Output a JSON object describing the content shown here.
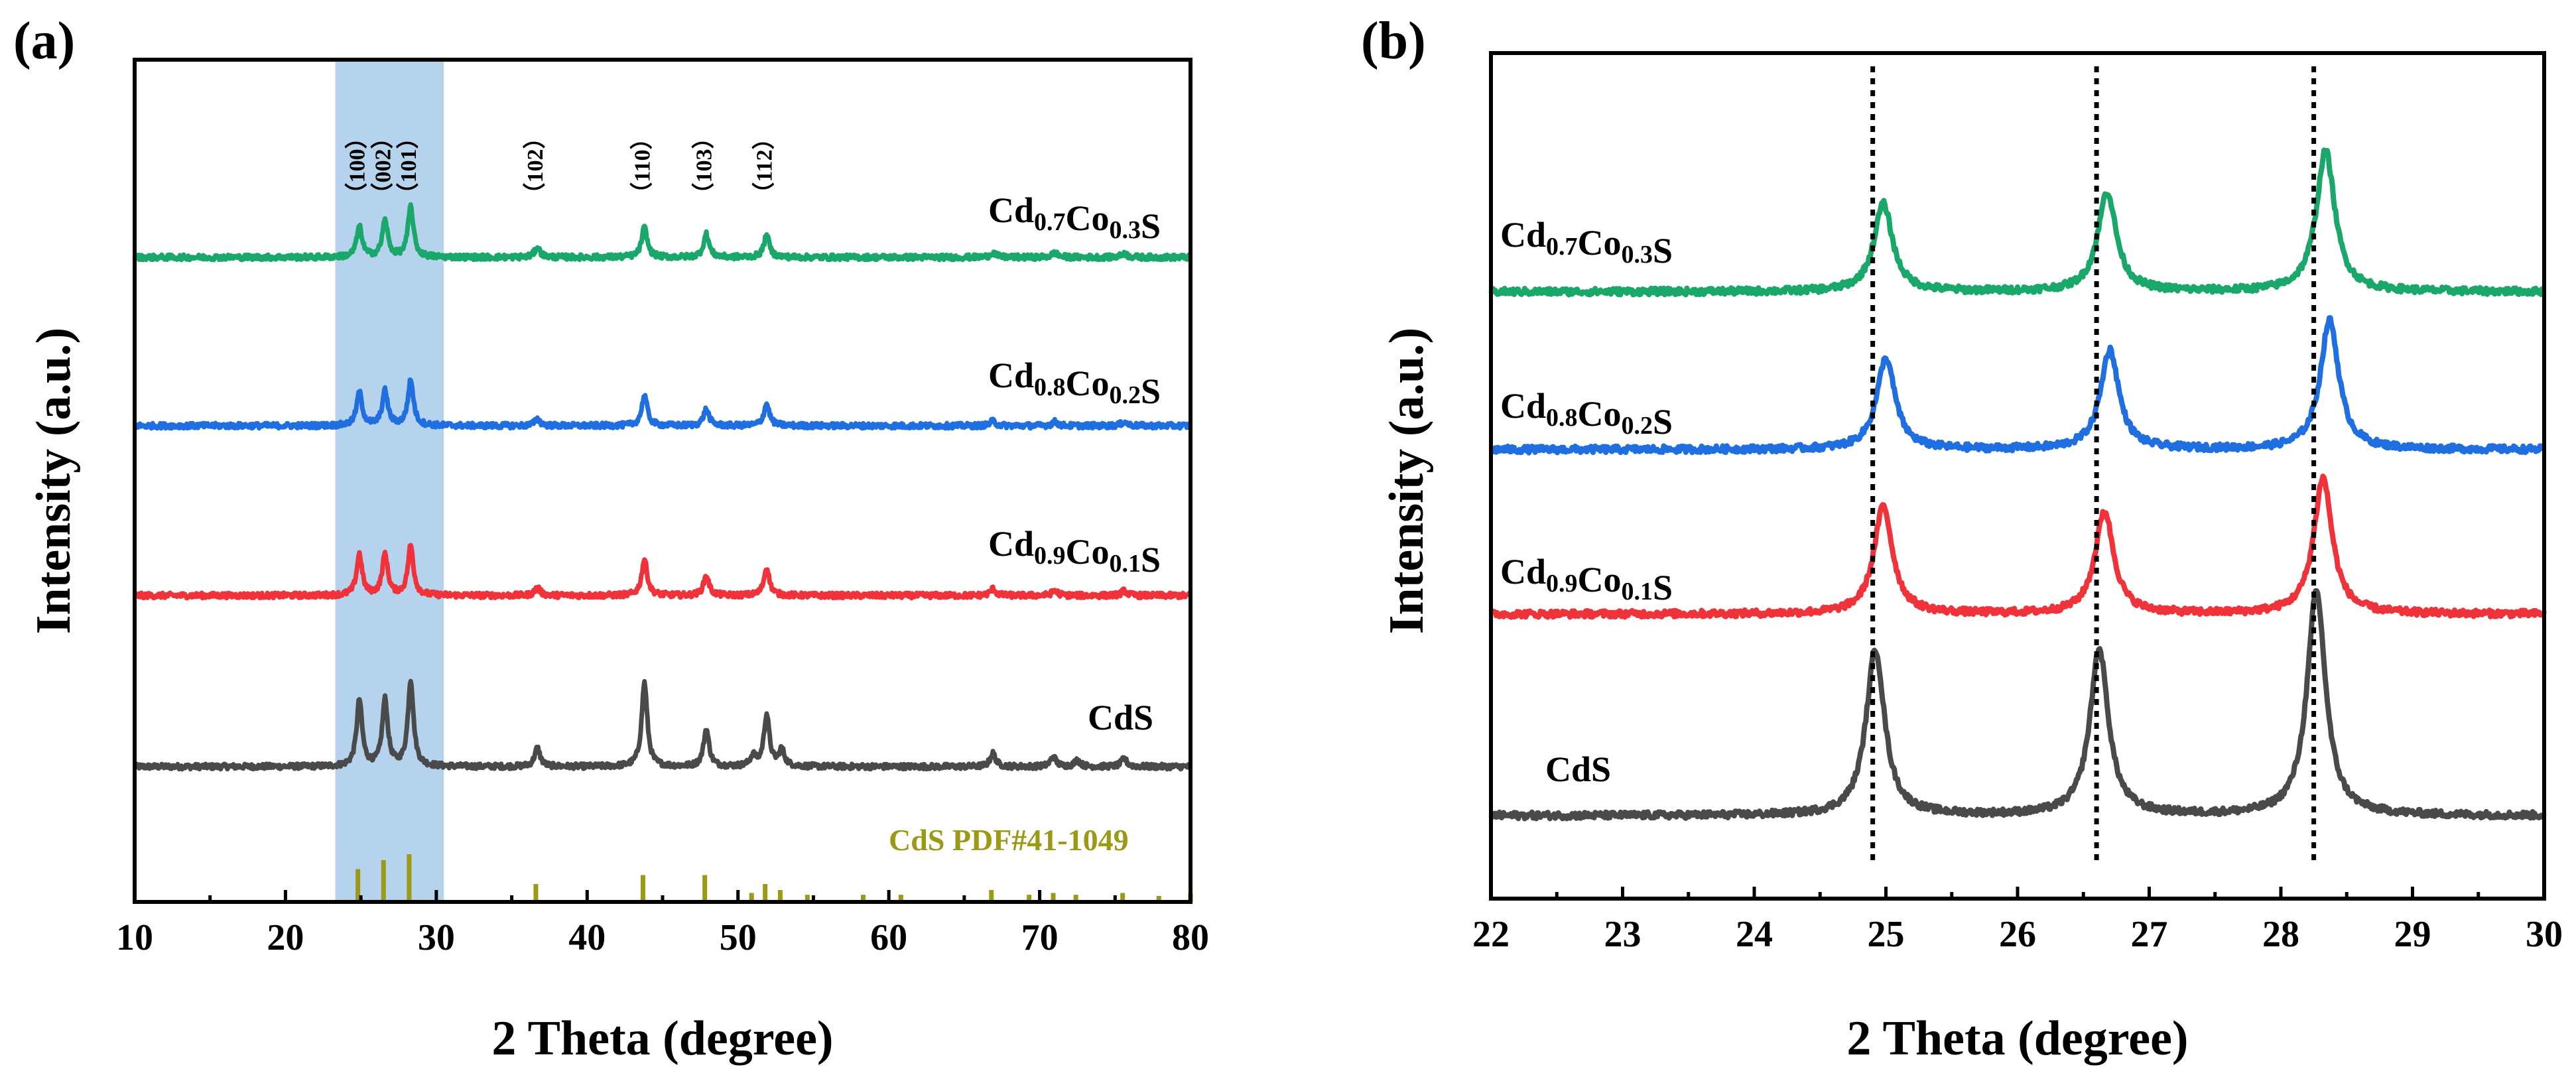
{
  "chart_data": [
    {
      "panel": "(a)",
      "type": "line",
      "xlabel": "2 Theta (degree)",
      "ylabel": "Intensity (a.u.)",
      "xlim": [
        10,
        80
      ],
      "xticks": [
        "10",
        "20",
        "30",
        "40",
        "50",
        "60",
        "70",
        "80"
      ],
      "highlight_range": [
        23.3,
        30.5
      ],
      "hkl_labels": [
        {
          "text": "（100）",
          "x": 24.8
        },
        {
          "text": "（002）",
          "x": 26.5
        },
        {
          "text": "（101）",
          "x": 28.2
        },
        {
          "text": "（102）",
          "x": 36.6
        },
        {
          "text": "（110）",
          "x": 43.7
        },
        {
          "text": "（103）",
          "x": 47.8
        },
        {
          "text": "（112）",
          "x": 51.8
        }
      ],
      "reference": {
        "label": "CdS PDF#41-1049",
        "color": "#9a9a14",
        "peaks": [
          {
            "x": 24.8,
            "h": 0.55
          },
          {
            "x": 26.5,
            "h": 0.7
          },
          {
            "x": 28.2,
            "h": 0.8
          },
          {
            "x": 36.6,
            "h": 0.3
          },
          {
            "x": 43.7,
            "h": 0.45
          },
          {
            "x": 47.8,
            "h": 0.45
          },
          {
            "x": 50.9,
            "h": 0.15
          },
          {
            "x": 51.8,
            "h": 0.3
          },
          {
            "x": 52.8,
            "h": 0.2
          },
          {
            "x": 54.6,
            "h": 0.12
          },
          {
            "x": 58.3,
            "h": 0.12
          },
          {
            "x": 60.8,
            "h": 0.12
          },
          {
            "x": 66.8,
            "h": 0.2
          },
          {
            "x": 69.3,
            "h": 0.12
          },
          {
            "x": 70.9,
            "h": 0.15
          },
          {
            "x": 72.4,
            "h": 0.12
          },
          {
            "x": 75.5,
            "h": 0.15
          },
          {
            "x": 77.9,
            "h": 0.1
          },
          {
            "x": 80.0,
            "h": 0.15
          }
        ]
      },
      "series": [
        {
          "name": "CdS",
          "label_main": "CdS",
          "color": "#4a4a4a",
          "offset": 0,
          "peaks": [
            {
              "x": 24.9,
              "h": 1.0
            },
            {
              "x": 26.6,
              "h": 1.0
            },
            {
              "x": 28.3,
              "h": 1.3
            },
            {
              "x": 36.7,
              "h": 0.28
            },
            {
              "x": 43.8,
              "h": 1.27
            },
            {
              "x": 47.9,
              "h": 0.56
            },
            {
              "x": 51.0,
              "h": 0.15
            },
            {
              "x": 51.9,
              "h": 0.78
            },
            {
              "x": 52.9,
              "h": 0.25
            },
            {
              "x": 66.9,
              "h": 0.2
            },
            {
              "x": 70.9,
              "h": 0.15
            },
            {
              "x": 72.5,
              "h": 0.1
            },
            {
              "x": 75.6,
              "h": 0.12
            }
          ]
        },
        {
          "name": "Cd0.9Co0.1S",
          "label_parts": [
            "Cd",
            "0.9",
            "Co",
            "0.1",
            "S"
          ],
          "color": "#f0333a",
          "offset": 1,
          "peaks": [
            {
              "x": 24.9,
              "h": 0.62
            },
            {
              "x": 26.6,
              "h": 0.62
            },
            {
              "x": 28.3,
              "h": 0.75
            },
            {
              "x": 36.7,
              "h": 0.12
            },
            {
              "x": 43.8,
              "h": 0.55
            },
            {
              "x": 47.9,
              "h": 0.3
            },
            {
              "x": 51.9,
              "h": 0.42
            },
            {
              "x": 66.9,
              "h": 0.1
            },
            {
              "x": 71.0,
              "h": 0.08
            },
            {
              "x": 75.6,
              "h": 0.07
            }
          ]
        },
        {
          "name": "Cd0.8Co0.2S",
          "label_parts": [
            "Cd",
            "0.8",
            "Co",
            "0.2",
            "S"
          ],
          "color": "#1f6fe0",
          "offset": 2,
          "peaks": [
            {
              "x": 24.9,
              "h": 0.5
            },
            {
              "x": 26.6,
              "h": 0.52
            },
            {
              "x": 28.3,
              "h": 0.68
            },
            {
              "x": 36.7,
              "h": 0.1
            },
            {
              "x": 43.8,
              "h": 0.46
            },
            {
              "x": 47.9,
              "h": 0.25
            },
            {
              "x": 51.9,
              "h": 0.33
            },
            {
              "x": 66.9,
              "h": 0.07
            },
            {
              "x": 71.0,
              "h": 0.06
            },
            {
              "x": 75.6,
              "h": 0.06
            }
          ]
        },
        {
          "name": "Cd0.7Co0.3S",
          "label_parts": [
            "Cd",
            "0.7",
            "Co",
            "0.3",
            "S"
          ],
          "color": "#1aa86a",
          "offset": 3,
          "peaks": [
            {
              "x": 24.9,
              "h": 0.46
            },
            {
              "x": 26.6,
              "h": 0.55
            },
            {
              "x": 28.3,
              "h": 0.76
            },
            {
              "x": 36.7,
              "h": 0.15
            },
            {
              "x": 43.8,
              "h": 0.45
            },
            {
              "x": 47.9,
              "h": 0.35
            },
            {
              "x": 51.9,
              "h": 0.33
            },
            {
              "x": 66.9,
              "h": 0.07
            },
            {
              "x": 71.0,
              "h": 0.07
            },
            {
              "x": 75.6,
              "h": 0.06
            }
          ]
        }
      ]
    },
    {
      "panel": "(b)",
      "type": "line",
      "xlabel": "2 Theta (degree)",
      "ylabel": "Intensity (a.u.)",
      "xlim": [
        22,
        30
      ],
      "xticks": [
        "22",
        "23",
        "24",
        "25",
        "26",
        "27",
        "28",
        "29",
        "30"
      ],
      "dotted_lines": [
        24.9,
        26.6,
        28.25
      ],
      "series": [
        {
          "name": "CdS",
          "label_main": "CdS",
          "color": "#4a4a4a",
          "offset": 0,
          "peaks": [
            {
              "x": 24.92,
              "h": 1.0
            },
            {
              "x": 26.62,
              "h": 1.0
            },
            {
              "x": 28.27,
              "h": 1.35
            }
          ]
        },
        {
          "name": "Cd0.9Co0.1S",
          "label_parts": [
            "Cd",
            "0.9",
            "Co",
            "0.1",
            "S"
          ],
          "color": "#f0333a",
          "offset": 1,
          "peaks": [
            {
              "x": 24.98,
              "h": 0.65
            },
            {
              "x": 26.66,
              "h": 0.62
            },
            {
              "x": 28.32,
              "h": 0.82
            }
          ]
        },
        {
          "name": "Cd0.8Co0.2S",
          "label_parts": [
            "Cd",
            "0.8",
            "Co",
            "0.2",
            "S"
          ],
          "color": "#1f6fe0",
          "offset": 2,
          "peaks": [
            {
              "x": 25.0,
              "h": 0.55
            },
            {
              "x": 26.7,
              "h": 0.6
            },
            {
              "x": 28.37,
              "h": 0.78
            }
          ]
        },
        {
          "name": "Cd0.7Co0.3S",
          "label_parts": [
            "Cd",
            "0.7",
            "Co",
            "0.3",
            "S"
          ],
          "color": "#1aa86a",
          "offset": 3,
          "peaks": [
            {
              "x": 24.98,
              "h": 0.53
            },
            {
              "x": 26.68,
              "h": 0.6
            },
            {
              "x": 28.34,
              "h": 0.85
            }
          ]
        }
      ]
    }
  ]
}
